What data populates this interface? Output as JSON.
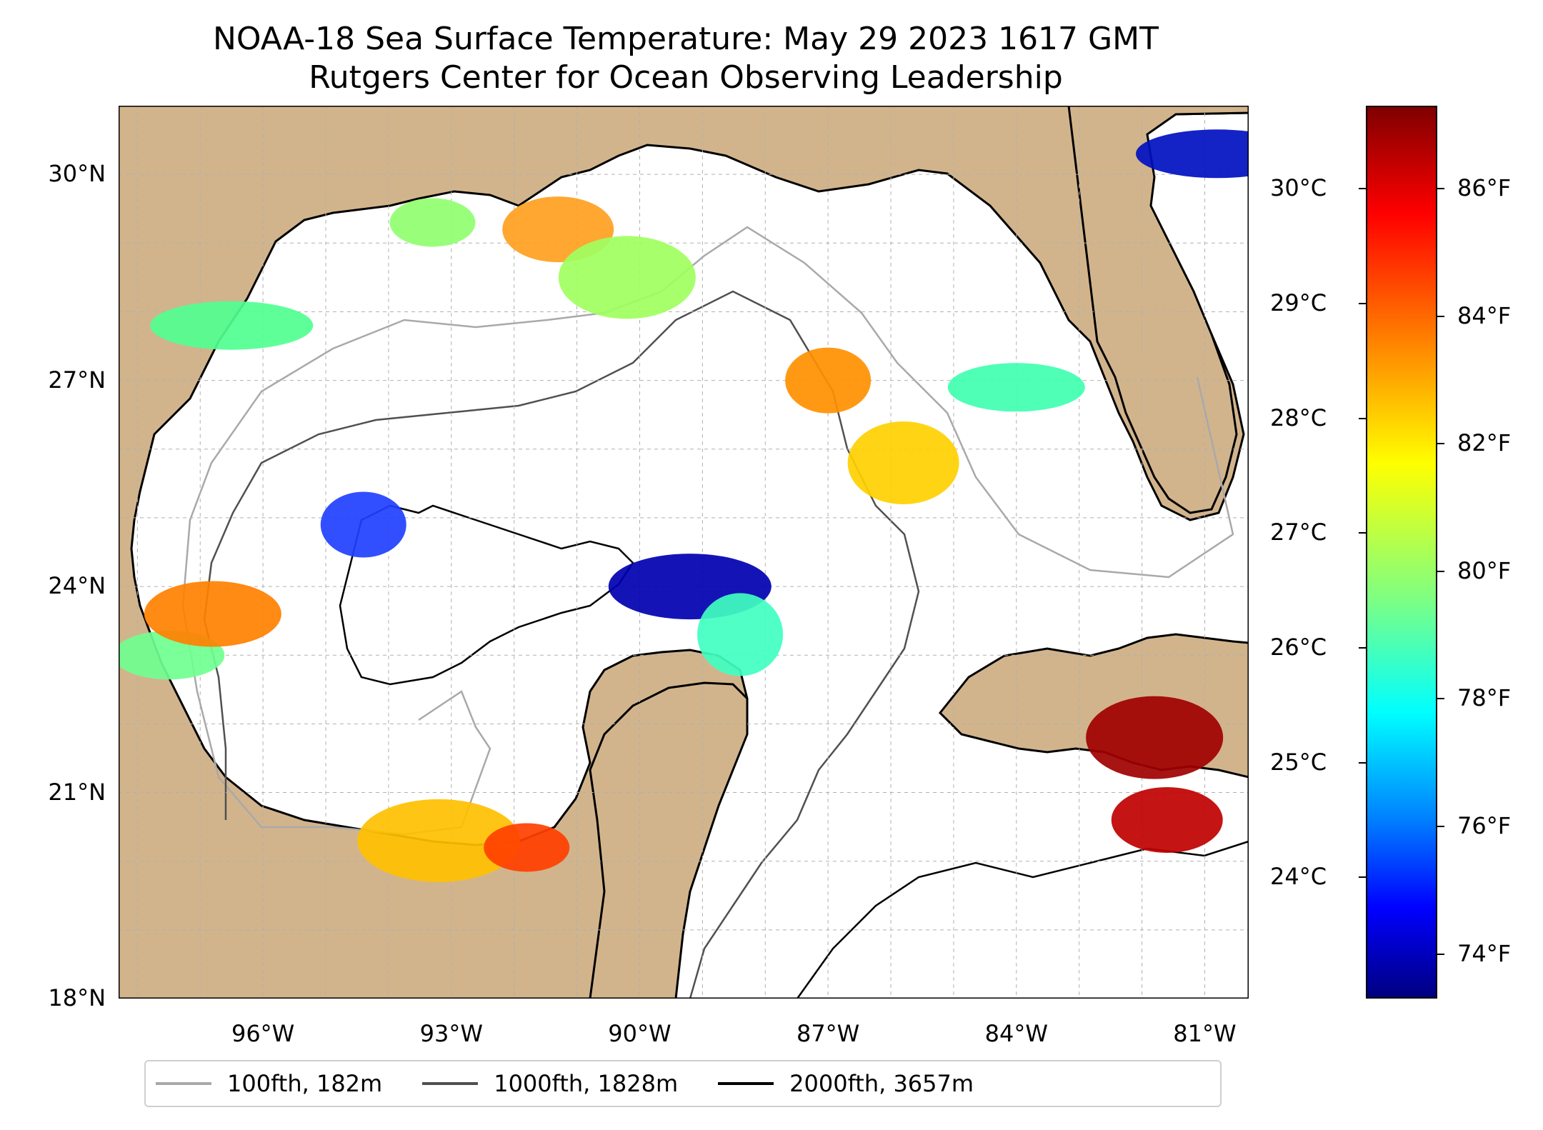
{
  "title": "NOAA-18 Sea Surface Temperature: May 29 2023 1617 GMT",
  "subtitle": "Rutgers Center for Ocean Observing Leadership",
  "map": {
    "region": "Gulf of Mexico",
    "extent": {
      "lon_min": -98.3,
      "lon_max": -80.3,
      "lat_min": 18.0,
      "lat_max": 31.0
    },
    "land_color": "#d2b48c",
    "no_data_color": "#ffffff",
    "lakes_color": "#9fb8e0",
    "gridlines": true,
    "lat_labels": [
      "30°N",
      "27°N",
      "24°N",
      "21°N",
      "18°N"
    ],
    "lat_values": [
      30,
      27,
      24,
      21,
      18
    ],
    "lon_labels": [
      "96°W",
      "93°W",
      "90°W",
      "87°W",
      "84°W",
      "81°W"
    ],
    "lon_values": [
      -96,
      -93,
      -90,
      -87,
      -84,
      -81
    ],
    "patches": [
      {
        "lon": -93.3,
        "lat": 29.3,
        "temp_f": 82,
        "color": "#90ff70"
      },
      {
        "lon": -91.3,
        "lat": 29.2,
        "temp_f": 84,
        "color": "#ffa020"
      },
      {
        "lon": -90.2,
        "lat": 28.5,
        "temp_f": 81,
        "color": "#a0ff60"
      },
      {
        "lon": -96.5,
        "lat": 27.8,
        "temp_f": 80,
        "color": "#50ff90"
      },
      {
        "lon": -87.0,
        "lat": 27.0,
        "temp_f": 84,
        "color": "#ff9000"
      },
      {
        "lon": -85.8,
        "lat": 25.8,
        "temp_f": 83,
        "color": "#ffd000"
      },
      {
        "lon": -84.0,
        "lat": 26.9,
        "temp_f": 79,
        "color": "#40ffb0"
      },
      {
        "lon": -89.2,
        "lat": 24.0,
        "temp_f": 74,
        "color": "#0000b0"
      },
      {
        "lon": -88.4,
        "lat": 23.3,
        "temp_f": 79,
        "color": "#40ffc0"
      },
      {
        "lon": -97.5,
        "lat": 23.0,
        "temp_f": 80,
        "color": "#70ff90"
      },
      {
        "lon": -96.8,
        "lat": 23.6,
        "temp_f": 84,
        "color": "#ff8000"
      },
      {
        "lon": -93.2,
        "lat": 20.3,
        "temp_f": 83,
        "color": "#ffc000"
      },
      {
        "lon": -91.8,
        "lat": 20.2,
        "temp_f": 85,
        "color": "#ff4000"
      },
      {
        "lon": -81.6,
        "lat": 20.6,
        "temp_f": 87,
        "color": "#c00000"
      },
      {
        "lon": -81.8,
        "lat": 21.8,
        "temp_f": 87,
        "color": "#a00000"
      },
      {
        "lon": -80.8,
        "lat": 30.3,
        "temp_f": 74,
        "color": "#0010c0"
      },
      {
        "lon": -94.4,
        "lat": 24.9,
        "temp_f": 76,
        "color": "#2040ff"
      }
    ]
  },
  "colorbar": {
    "f_labels": [
      "86°F",
      "84°F",
      "82°F",
      "80°F",
      "78°F",
      "76°F",
      "74°F"
    ],
    "f_values": [
      86,
      84,
      82,
      80,
      78,
      76,
      74
    ],
    "c_labels": [
      "30°C",
      "29°C",
      "28°C",
      "27°C",
      "26°C",
      "25°C",
      "24°C"
    ],
    "c_values": [
      30,
      29,
      28,
      27,
      26,
      25,
      24
    ]
  },
  "legend": [
    {
      "label": "100fth, 182m",
      "color": "#a9a9a9"
    },
    {
      "label": "1000fth, 1828m",
      "color": "#505050"
    },
    {
      "label": "2000fth, 3657m",
      "color": "#000000"
    }
  ]
}
